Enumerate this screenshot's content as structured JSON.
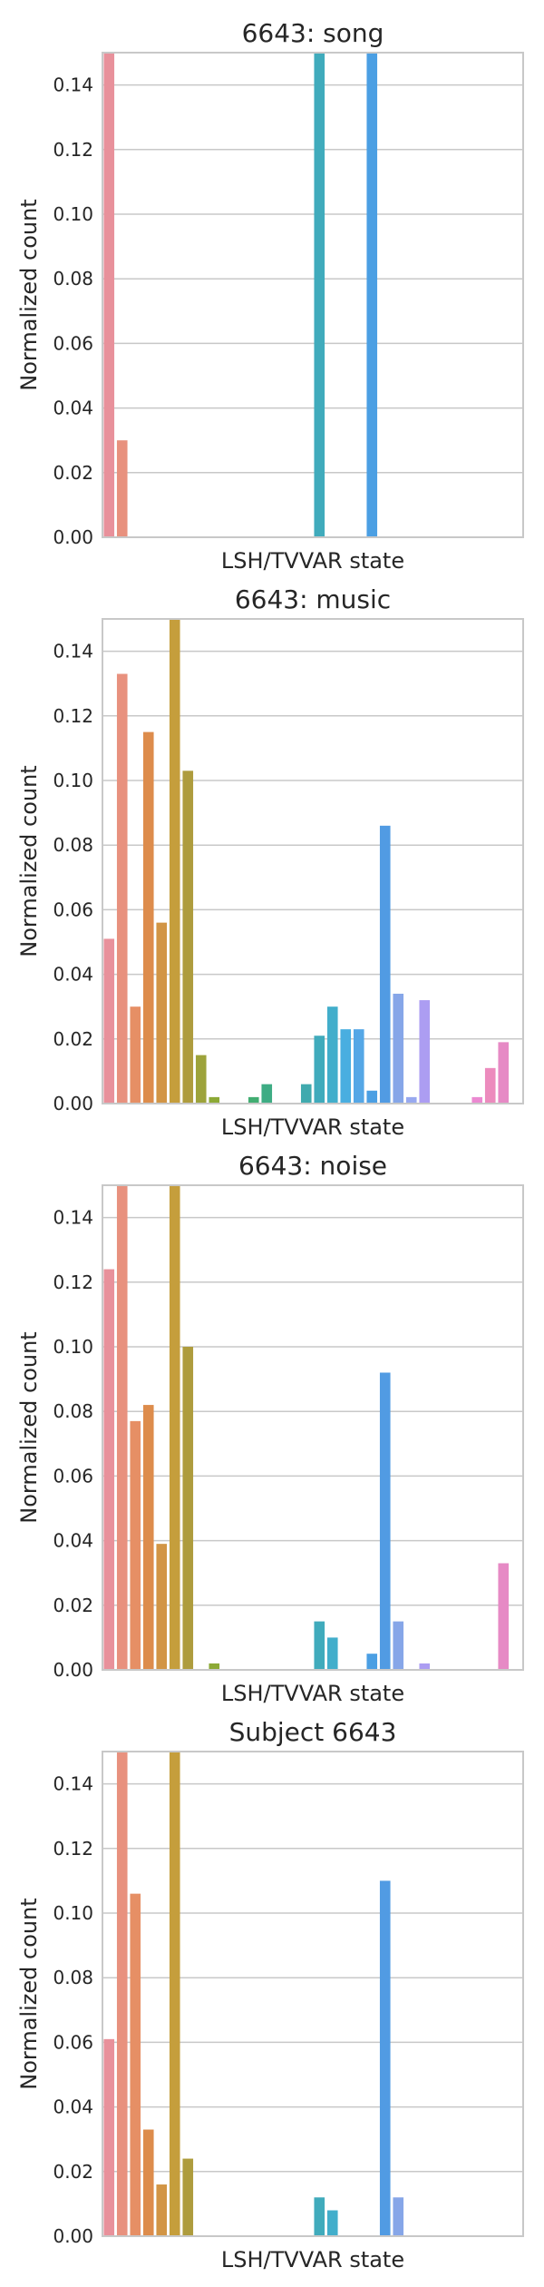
{
  "chart_data": [
    {
      "type": "bar",
      "title": "6643: song",
      "xlabel": "LSH/TVVAR state",
      "ylabel": "Normalized count",
      "ylim": [
        0,
        0.15
      ],
      "yticks": [
        "0.00",
        "0.02",
        "0.04",
        "0.06",
        "0.08",
        "0.10",
        "0.12",
        "0.14"
      ],
      "grid": true,
      "values": [
        0.15,
        0.03,
        0,
        0,
        0,
        0,
        0,
        0,
        0,
        0,
        0,
        0,
        0,
        0,
        0,
        0,
        0.15,
        0,
        0,
        0,
        0.15,
        0,
        0,
        0,
        0,
        0,
        0,
        0,
        0,
        0,
        0,
        0
      ]
    },
    {
      "type": "bar",
      "title": "6643: music",
      "xlabel": "LSH/TVVAR state",
      "ylabel": "Normalized count",
      "ylim": [
        0,
        0.15
      ],
      "yticks": [
        "0.00",
        "0.02",
        "0.04",
        "0.06",
        "0.08",
        "0.10",
        "0.12",
        "0.14"
      ],
      "grid": true,
      "values": [
        0.051,
        0.133,
        0.03,
        0.115,
        0.056,
        0.15,
        0.103,
        0.015,
        0.002,
        0,
        0,
        0.002,
        0.006,
        0,
        0,
        0.006,
        0.021,
        0.03,
        0.023,
        0.023,
        0.004,
        0.086,
        0.034,
        0.002,
        0.032,
        0,
        0,
        0,
        0.002,
        0.011,
        0.019,
        0
      ]
    },
    {
      "type": "bar",
      "title": "6643: noise",
      "xlabel": "LSH/TVVAR state",
      "ylabel": "Normalized count",
      "ylim": [
        0,
        0.15
      ],
      "yticks": [
        "0.00",
        "0.02",
        "0.04",
        "0.06",
        "0.08",
        "0.10",
        "0.12",
        "0.14"
      ],
      "grid": true,
      "values": [
        0.124,
        0.15,
        0.077,
        0.082,
        0.039,
        0.15,
        0.1,
        0,
        0.002,
        0,
        0,
        0,
        0,
        0,
        0,
        0,
        0.015,
        0.01,
        0,
        0,
        0.005,
        0.092,
        0.015,
        0,
        0.002,
        0,
        0,
        0,
        0,
        0,
        0.033,
        0
      ]
    },
    {
      "type": "bar",
      "title": "Subject 6643",
      "xlabel": "LSH/TVVAR state",
      "ylabel": "Normalized count",
      "ylim": [
        0,
        0.15
      ],
      "yticks": [
        "0.00",
        "0.02",
        "0.04",
        "0.06",
        "0.08",
        "0.10",
        "0.12",
        "0.14"
      ],
      "grid": true,
      "values": [
        0.061,
        0.15,
        0.106,
        0.033,
        0.016,
        0.15,
        0.024,
        0,
        0,
        0,
        0,
        0,
        0,
        0,
        0,
        0,
        0.012,
        0.008,
        0,
        0,
        0,
        0.11,
        0.012,
        0,
        0,
        0,
        0,
        0,
        0,
        0,
        0,
        0
      ]
    }
  ],
  "colors": {
    "palette": [
      "#e8919b",
      "#e8917e",
      "#e68f65",
      "#dd8c4c",
      "#d29545",
      "#c59e3c",
      "#ae9c3d",
      "#9da33b",
      "#8ca936",
      "#74ab3b",
      "#48ae54",
      "#42ad72",
      "#3eac84",
      "#3dab93",
      "#3eaba0",
      "#40aaae",
      "#40abbc",
      "#42aecb",
      "#49aee0",
      "#55a7e6",
      "#4b9fe3",
      "#519be3",
      "#86a6e8",
      "#98a9ef",
      "#ac9df2",
      "#c095ee",
      "#d38de9",
      "#e786e4",
      "#eb89d1",
      "#ec8bbd",
      "#e68ac5",
      "#ee90b5"
    ],
    "grid": "#c8c8c8",
    "frame": "#c8c8c8",
    "text": "#262626"
  }
}
